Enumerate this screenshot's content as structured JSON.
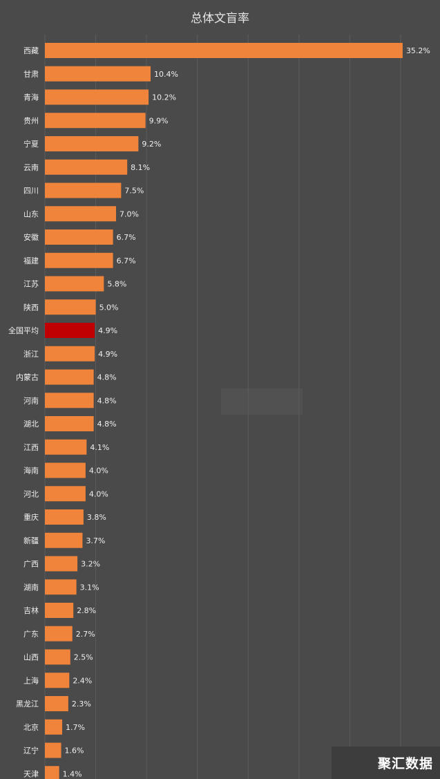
{
  "chart_data": {
    "type": "bar",
    "orientation": "horizontal",
    "title": "总体文盲率",
    "categories": [
      "西藏",
      "甘肃",
      "青海",
      "贵州",
      "宁夏",
      "云南",
      "四川",
      "山东",
      "安徽",
      "福建",
      "江苏",
      "陕西",
      "全国平均",
      "浙江",
      "内蒙古",
      "河南",
      "湖北",
      "江西",
      "海南",
      "河北",
      "重庆",
      "新疆",
      "广西",
      "湖南",
      "吉林",
      "广东",
      "山西",
      "上海",
      "黑龙江",
      "北京",
      "辽宁",
      "天津"
    ],
    "values": [
      35.2,
      10.4,
      10.2,
      9.9,
      9.2,
      8.1,
      7.5,
      7.0,
      6.7,
      6.7,
      5.8,
      5.0,
      4.9,
      4.9,
      4.8,
      4.8,
      4.8,
      4.1,
      4.0,
      4.0,
      3.8,
      3.7,
      3.2,
      3.1,
      2.8,
      2.7,
      2.5,
      2.4,
      2.3,
      1.7,
      1.6,
      1.4
    ],
    "value_labels": [
      "35.2%",
      "10.4%",
      "10.2%",
      "9.9%",
      "9.2%",
      "8.1%",
      "7.5%",
      "7.0%",
      "6.7%",
      "6.7%",
      "5.8%",
      "5.0%",
      "4.9%",
      "4.9%",
      "4.8%",
      "4.8%",
      "4.8%",
      "4.1%",
      "4.0%",
      "4.0%",
      "3.8%",
      "3.7%",
      "3.2%",
      "3.1%",
      "2.8%",
      "2.7%",
      "2.5%",
      "2.4%",
      "2.3%",
      "1.7%",
      "1.6%",
      "1.4%"
    ],
    "highlight_category": "全国平均",
    "xlim": [
      0,
      35
    ],
    "grid": true,
    "xlabel": "",
    "ylabel": "",
    "colors": {
      "bar": "#f0843a",
      "highlight": "#c00000",
      "background": "#4a4a4a",
      "grid": "#5c5c5c",
      "text": "#f0f0f0"
    }
  },
  "watermark": {
    "text": "聚汇数据"
  }
}
